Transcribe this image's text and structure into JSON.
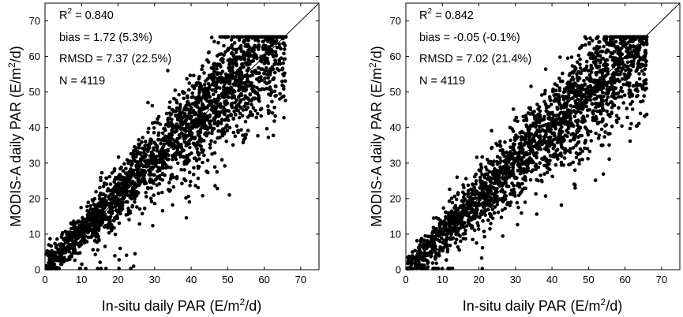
{
  "chart_data": [
    {
      "type": "scatter",
      "xlabel": "In-situ daily PAR (E/m2/d)",
      "ylabel": "MODIS-A daily PAR (E/m2/d)",
      "xlim": [
        0,
        75
      ],
      "ylim": [
        0,
        75
      ],
      "xticks": [
        "0",
        "10",
        "20",
        "30",
        "40",
        "50",
        "60",
        "70"
      ],
      "yticks": [
        "0",
        "10",
        "20",
        "30",
        "40",
        "50",
        "60",
        "70"
      ],
      "reference_line": "1:1",
      "grid": false,
      "stats": {
        "r2_label": "R",
        "r2_sup": "2",
        "r2_value": " = 0.840",
        "bias": "bias = 1.72 (5.3%)",
        "rmsd": "RMSD = 7.37 (22.5%)",
        "n": "N = 4119"
      },
      "summary": {
        "r2": 0.84,
        "bias": 1.72,
        "bias_pct": 5.3,
        "rmsd": 7.37,
        "rmsd_pct": 22.5,
        "n": 4119
      }
    },
    {
      "type": "scatter",
      "xlabel": "In-situ daily PAR (E/m2/d)",
      "ylabel": "MODIS-A daily PAR (E/m2/d)",
      "xlim": [
        0,
        75
      ],
      "ylim": [
        0,
        75
      ],
      "xticks": [
        "0",
        "10",
        "20",
        "30",
        "40",
        "50",
        "60",
        "70"
      ],
      "yticks": [
        "0",
        "10",
        "20",
        "30",
        "40",
        "50",
        "60",
        "70"
      ],
      "reference_line": "1:1",
      "grid": false,
      "stats": {
        "r2_label": "R",
        "r2_sup": "2",
        "r2_value": " = 0.842",
        "bias": "bias = -0.05 (-0.1%)",
        "rmsd": "RMSD = 7.02 (21.4%)",
        "n": "N = 4119"
      },
      "summary": {
        "r2": 0.842,
        "bias": -0.05,
        "bias_pct": -0.1,
        "rmsd": 7.02,
        "rmsd_pct": 21.4,
        "n": 4119
      }
    }
  ],
  "labels": {
    "xlabel_pre": "In-situ daily PAR (E/m",
    "xlabel_sup": "2",
    "xlabel_post": "/d)",
    "ylabel_pre": "MODIS-A daily PAR (E/m",
    "ylabel_sup": "2",
    "ylabel_post": "/d)"
  }
}
